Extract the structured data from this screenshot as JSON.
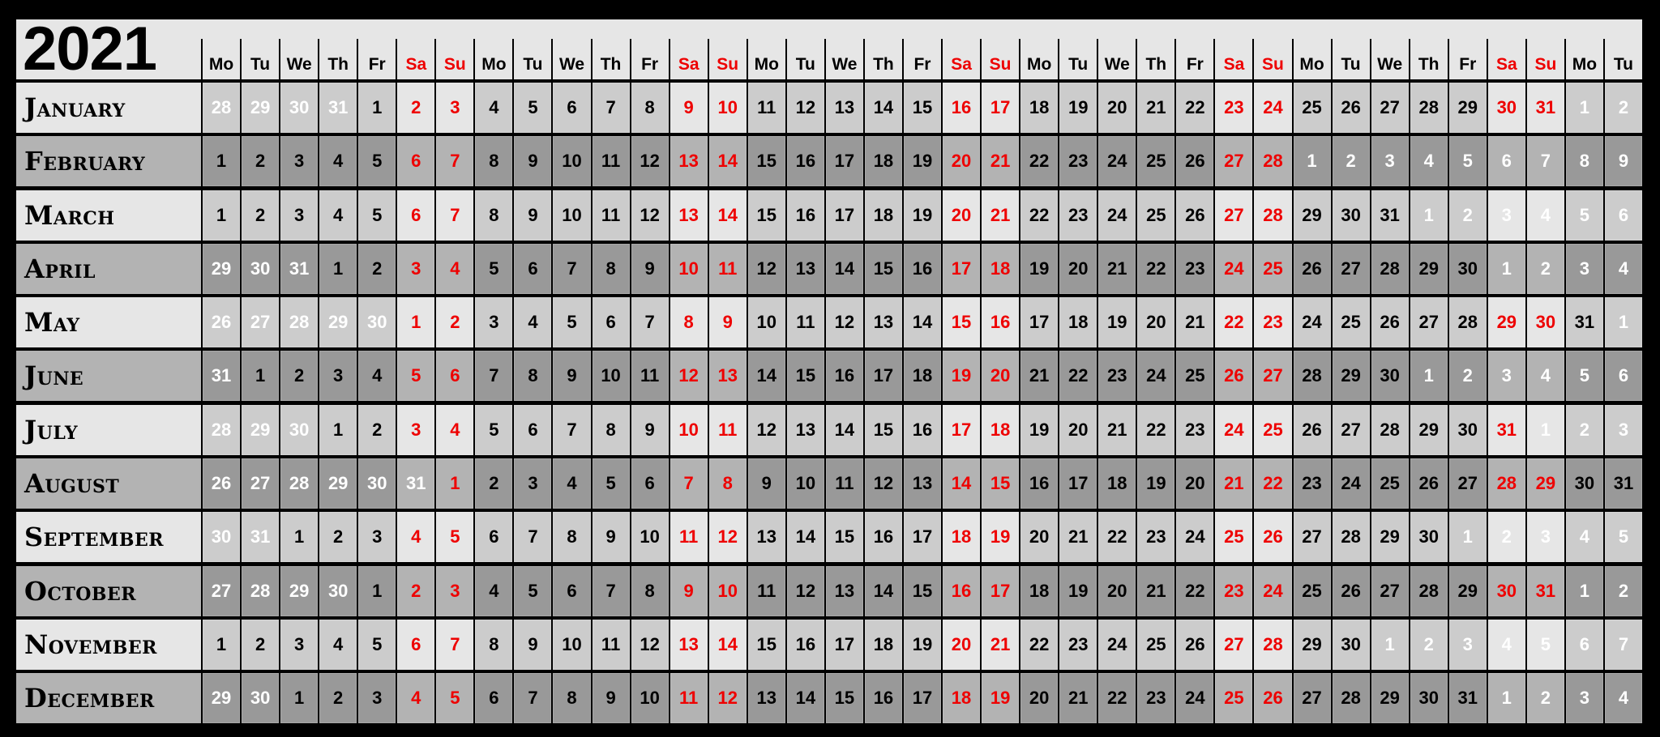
{
  "year": "2021",
  "weekday_headers": [
    "Mo",
    "Tu",
    "We",
    "Th",
    "Fr",
    "Sa",
    "Su",
    "Mo",
    "Tu",
    "We",
    "Th",
    "Fr",
    "Sa",
    "Su",
    "Mo",
    "Tu",
    "We",
    "Th",
    "Fr",
    "Sa",
    "Su",
    "Mo",
    "Tu",
    "We",
    "Th",
    "Fr",
    "Sa",
    "Su",
    "Mo",
    "Tu",
    "We",
    "Th",
    "Fr",
    "Sa",
    "Su",
    "Mo",
    "Tu"
  ],
  "weekend_labels": [
    "Sa",
    "Su"
  ],
  "colors": {
    "weekend_text": "#ee0000",
    "out_of_month_text": "#ffffff",
    "light_row_label": "#e6e6e6",
    "light_row_weekday": "#cccccc",
    "light_row_weekend": "#e6e6e6",
    "dark_row_label": "#b3b3b3",
    "dark_row_weekday": "#999999",
    "dark_row_weekend": "#b3b3b3"
  },
  "months": [
    {
      "name": "January",
      "cells": [
        28,
        29,
        30,
        31,
        1,
        2,
        3,
        4,
        5,
        6,
        7,
        8,
        9,
        10,
        11,
        12,
        13,
        14,
        15,
        16,
        17,
        18,
        19,
        20,
        21,
        22,
        23,
        24,
        25,
        26,
        27,
        28,
        29,
        30,
        31,
        1,
        2
      ]
    },
    {
      "name": "February",
      "cells": [
        1,
        2,
        3,
        4,
        5,
        6,
        7,
        8,
        9,
        10,
        11,
        12,
        13,
        14,
        15,
        16,
        17,
        18,
        19,
        20,
        21,
        22,
        23,
        24,
        25,
        26,
        27,
        28,
        1,
        2,
        3,
        4,
        5,
        6,
        7,
        8,
        9
      ]
    },
    {
      "name": "March",
      "cells": [
        1,
        2,
        3,
        4,
        5,
        6,
        7,
        8,
        9,
        10,
        11,
        12,
        13,
        14,
        15,
        16,
        17,
        18,
        19,
        20,
        21,
        22,
        23,
        24,
        25,
        26,
        27,
        28,
        29,
        30,
        31,
        1,
        2,
        3,
        4,
        5,
        6
      ]
    },
    {
      "name": "April",
      "cells": [
        29,
        30,
        31,
        1,
        2,
        3,
        4,
        5,
        6,
        7,
        8,
        9,
        10,
        11,
        12,
        13,
        14,
        15,
        16,
        17,
        18,
        19,
        20,
        21,
        22,
        23,
        24,
        25,
        26,
        27,
        28,
        29,
        30,
        1,
        2,
        3,
        4
      ]
    },
    {
      "name": "May",
      "cells": [
        26,
        27,
        28,
        29,
        30,
        1,
        2,
        3,
        4,
        5,
        6,
        7,
        8,
        9,
        10,
        11,
        12,
        13,
        14,
        15,
        16,
        17,
        18,
        19,
        20,
        21,
        22,
        23,
        24,
        25,
        26,
        27,
        28,
        29,
        30,
        31,
        1
      ]
    },
    {
      "name": "June",
      "cells": [
        31,
        1,
        2,
        3,
        4,
        5,
        6,
        7,
        8,
        9,
        10,
        11,
        12,
        13,
        14,
        15,
        16,
        17,
        18,
        19,
        20,
        21,
        22,
        23,
        24,
        25,
        26,
        27,
        28,
        29,
        30,
        1,
        2,
        3,
        4,
        5,
        6
      ]
    },
    {
      "name": "July",
      "cells": [
        28,
        29,
        30,
        1,
        2,
        3,
        4,
        5,
        6,
        7,
        8,
        9,
        10,
        11,
        12,
        13,
        14,
        15,
        16,
        17,
        18,
        19,
        20,
        21,
        22,
        23,
        24,
        25,
        26,
        27,
        28,
        29,
        30,
        31,
        1,
        2,
        3
      ]
    },
    {
      "name": "August",
      "cells": [
        26,
        27,
        28,
        29,
        30,
        31,
        1,
        2,
        3,
        4,
        5,
        6,
        7,
        8,
        9,
        10,
        11,
        12,
        13,
        14,
        15,
        16,
        17,
        18,
        19,
        20,
        21,
        22,
        23,
        24,
        25,
        26,
        27,
        28,
        29,
        30,
        31
      ]
    },
    {
      "name": "September",
      "cells": [
        30,
        31,
        1,
        2,
        3,
        4,
        5,
        6,
        7,
        8,
        9,
        10,
        11,
        12,
        13,
        14,
        15,
        16,
        17,
        18,
        19,
        20,
        21,
        22,
        23,
        24,
        25,
        26,
        27,
        28,
        29,
        30,
        1,
        2,
        3,
        4,
        5
      ]
    },
    {
      "name": "October",
      "cells": [
        27,
        28,
        29,
        30,
        1,
        2,
        3,
        4,
        5,
        6,
        7,
        8,
        9,
        10,
        11,
        12,
        13,
        14,
        15,
        16,
        17,
        18,
        19,
        20,
        21,
        22,
        23,
        24,
        25,
        26,
        27,
        28,
        29,
        30,
        31,
        1,
        2
      ]
    },
    {
      "name": "November",
      "cells": [
        1,
        2,
        3,
        4,
        5,
        6,
        7,
        8,
        9,
        10,
        11,
        12,
        13,
        14,
        15,
        16,
        17,
        18,
        19,
        20,
        21,
        22,
        23,
        24,
        25,
        26,
        27,
        28,
        29,
        30,
        1,
        2,
        3,
        4,
        5,
        6,
        7
      ]
    },
    {
      "name": "December",
      "cells": [
        29,
        30,
        1,
        2,
        3,
        4,
        5,
        6,
        7,
        8,
        9,
        10,
        11,
        12,
        13,
        14,
        15,
        16,
        17,
        18,
        19,
        20,
        21,
        22,
        23,
        24,
        25,
        26,
        27,
        28,
        29,
        30,
        31,
        1,
        2,
        3,
        4
      ]
    }
  ]
}
